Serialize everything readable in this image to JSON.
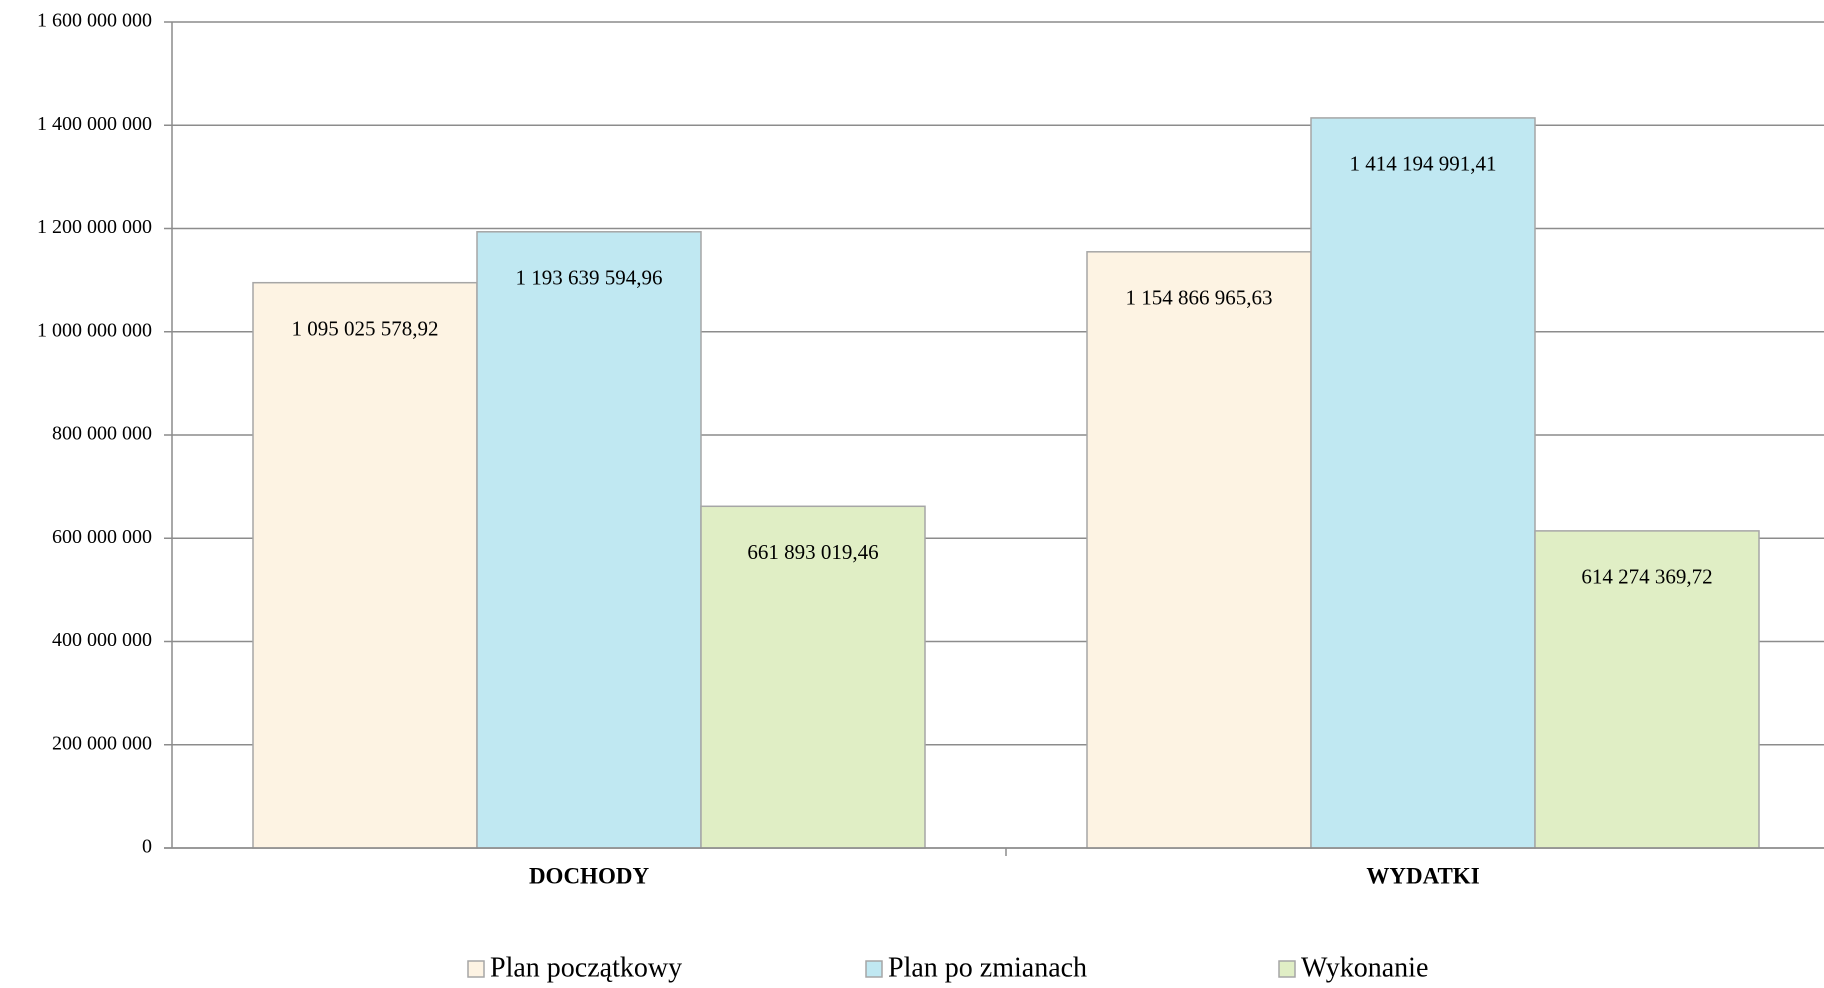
{
  "chart_data": {
    "type": "bar",
    "categories": [
      "DOCHODY",
      "WYDATKI"
    ],
    "series": [
      {
        "name": "Plan początkowy",
        "color": "#fdf3e3",
        "values": [
          1095025578.92,
          1154866965.63
        ],
        "value_labels": [
          "1 095 025 578,92",
          "1 154 866 965,63"
        ]
      },
      {
        "name": "Plan po zmianach",
        "color": "#c0e8f2",
        "values": [
          1193639594.96,
          1414194991.41
        ],
        "value_labels": [
          "1 193 639 594,96",
          "1 414 194 991,41"
        ]
      },
      {
        "name": "Wykonanie",
        "color": "#e0eec5",
        "values": [
          661893019.46,
          614274369.72
        ],
        "value_labels": [
          "661 893 019,46",
          "614 274 369,72"
        ]
      }
    ],
    "ylim": [
      0,
      1600000000
    ],
    "yticks": [
      0,
      {
        "value": 200000000,
        "label": "200 000 000"
      },
      {
        "value": 400000000,
        "label": "400 000 000"
      },
      {
        "value": 600000000,
        "label": "600 000 000"
      },
      {
        "value": 800000000,
        "label": "800 000 000"
      },
      {
        "value": 1000000000,
        "label": "1 000 000 000"
      },
      {
        "value": 1200000000,
        "label": "1 200 000 000"
      },
      {
        "value": 1400000000,
        "label": "1 400 000 000"
      },
      {
        "value": 1600000000,
        "label": "1 600 000 000"
      }
    ],
    "grid": true,
    "legend": "bottom"
  }
}
